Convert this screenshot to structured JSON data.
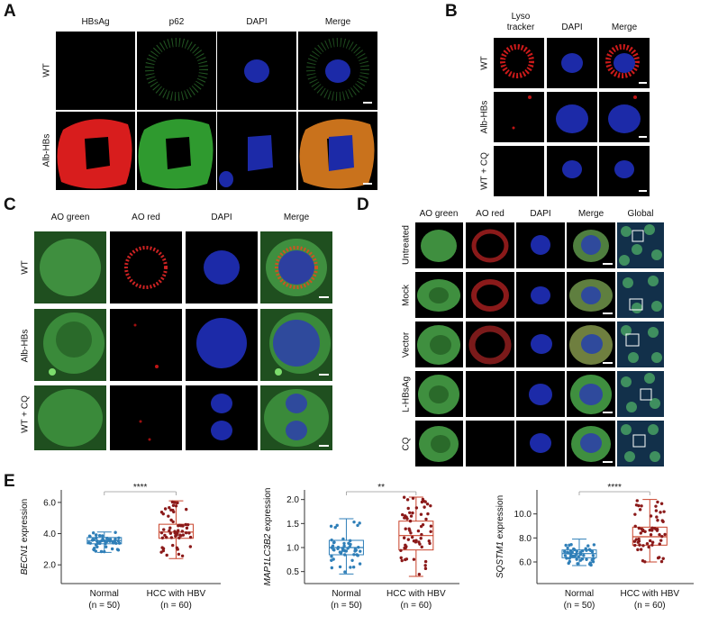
{
  "panels": {
    "A": {
      "label": "A",
      "columns": [
        "HBsAg",
        "p62",
        "DAPI",
        "Merge"
      ],
      "rows": [
        "WT",
        "Alb-HBs"
      ]
    },
    "B": {
      "label": "B",
      "columns": [
        "Lyso tracker",
        "DAPI",
        "Merge"
      ],
      "rows": [
        "WT",
        "Alb-HBs",
        "WT + CQ"
      ]
    },
    "C": {
      "label": "C",
      "columns": [
        "AO green",
        "AO red",
        "DAPI",
        "Merge"
      ],
      "rows": [
        "WT",
        "Alb-HBs",
        "WT + CQ"
      ]
    },
    "D": {
      "label": "D",
      "columns": [
        "AO green",
        "AO red",
        "DAPI",
        "Merge",
        "Global"
      ],
      "rows": [
        "Untreated",
        "Mock",
        "Vector",
        "L-HBsAg",
        "CQ"
      ]
    },
    "E": {
      "label": "E"
    }
  },
  "colors": {
    "normal": "#2f7fb8",
    "hbv": "#c9432b",
    "hbv_points": "#8b1a1a",
    "red_signal": "#e02020",
    "green_signal": "#3fae3f",
    "blue_signal": "#2233cc"
  },
  "chart_data": [
    {
      "type": "box",
      "gene": "BECN1",
      "ylabel_suffix": "expression",
      "categories": [
        "Normal",
        "HCC with HBV"
      ],
      "n_labels": [
        "(n = 50)",
        "(n = 60)"
      ],
      "yticks": [
        "2.0",
        "4.0",
        "6.0"
      ],
      "ylim": [
        0.8,
        6.8
      ],
      "significance": "****",
      "series": [
        {
          "q1": 3.35,
          "median": 3.55,
          "q3": 3.75,
          "whisker_low": 2.8,
          "whisker_high": 4.1,
          "n": 50
        },
        {
          "q1": 3.7,
          "median": 4.1,
          "q3": 4.6,
          "whisker_low": 2.4,
          "whisker_high": 6.1,
          "n": 60
        }
      ]
    },
    {
      "type": "box",
      "gene": "MAP1LC3B2",
      "ylabel_suffix": "expression",
      "categories": [
        "Normal",
        "HCC with HBV"
      ],
      "n_labels": [
        "(n = 50)",
        "(n = 60)"
      ],
      "yticks": [
        "0.5",
        "1.0",
        "1.5",
        "2.0"
      ],
      "ylim": [
        0.25,
        2.2
      ],
      "significance": "**",
      "series": [
        {
          "q1": 0.85,
          "median": 1.0,
          "q3": 1.15,
          "whisker_low": 0.45,
          "whisker_high": 1.6,
          "n": 50
        },
        {
          "q1": 0.95,
          "median": 1.25,
          "q3": 1.55,
          "whisker_low": 0.4,
          "whisker_high": 2.05,
          "n": 60
        }
      ]
    },
    {
      "type": "box",
      "gene": "SQSTM1",
      "ylabel_suffix": "expression",
      "categories": [
        "Normal",
        "HCC with HBV"
      ],
      "n_labels": [
        "(n = 50)",
        "(n = 60)"
      ],
      "yticks": [
        "6.0",
        "8.0",
        "10.0"
      ],
      "ylim": [
        4.2,
        12.0
      ],
      "significance": "****",
      "series": [
        {
          "q1": 6.35,
          "median": 6.7,
          "q3": 7.0,
          "whisker_low": 5.7,
          "whisker_high": 7.9,
          "n": 50
        },
        {
          "q1": 7.4,
          "median": 8.1,
          "q3": 8.9,
          "whisker_low": 6.0,
          "whisker_high": 11.2,
          "n": 60
        }
      ]
    }
  ]
}
